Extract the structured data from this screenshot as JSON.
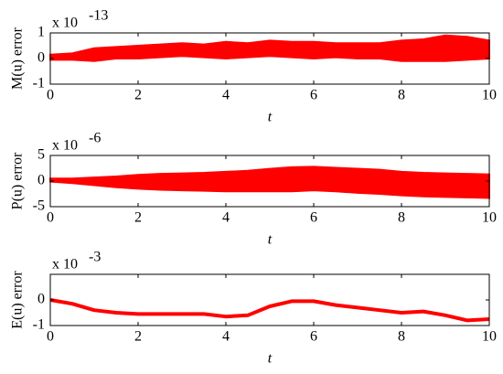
{
  "chart_data": [
    {
      "type": "band",
      "ylabel": "M(u) error",
      "xlabel": "t",
      "multiplier": "x 10",
      "exponent": "-13",
      "color": "#ff0000",
      "x": [
        0,
        0.5,
        1,
        1.5,
        2,
        2.5,
        3,
        3.5,
        4,
        4.5,
        5,
        5.5,
        6,
        6.5,
        7,
        7.5,
        8,
        8.5,
        9,
        9.5,
        10
      ],
      "upper": [
        0.15,
        0.2,
        0.4,
        0.45,
        0.5,
        0.55,
        0.6,
        0.55,
        0.65,
        0.6,
        0.7,
        0.65,
        0.65,
        0.6,
        0.6,
        0.6,
        0.7,
        0.75,
        0.9,
        0.85,
        0.7
      ],
      "lower": [
        -0.05,
        -0.05,
        -0.1,
        0,
        0,
        0.05,
        0.1,
        0.05,
        0,
        0.05,
        0.1,
        0.05,
        0,
        0.05,
        0,
        0,
        -0.1,
        -0.1,
        -0.1,
        -0.05,
        0
      ],
      "xlim": [
        0,
        10
      ],
      "xticks": [
        0,
        2,
        4,
        6,
        8,
        10
      ],
      "ylim": [
        -1,
        1
      ],
      "yticks": [
        -1,
        0,
        1
      ]
    },
    {
      "type": "band",
      "ylabel": "P(u) error",
      "xlabel": "t",
      "multiplier": "x 10",
      "exponent": "-6",
      "color": "#ff0000",
      "x": [
        0,
        0.5,
        1,
        1.5,
        2,
        2.5,
        3,
        3.5,
        4,
        4.5,
        5,
        5.5,
        6,
        6.5,
        7,
        7.5,
        8,
        8.5,
        9,
        9.5,
        10
      ],
      "upper": [
        0.5,
        0.5,
        0.7,
        0.9,
        1.2,
        1.4,
        1.5,
        1.6,
        1.8,
        2,
        2.4,
        2.7,
        2.8,
        2.6,
        2.4,
        2.2,
        1.8,
        1.6,
        1.5,
        1.4,
        1.3
      ],
      "lower": [
        -0.1,
        -0.4,
        -0.8,
        -1.2,
        -1.5,
        -1.7,
        -1.8,
        -1.9,
        -2,
        -2,
        -2,
        -2,
        -1.8,
        -2,
        -2.3,
        -2.5,
        -2.8,
        -3,
        -3.1,
        -3.2,
        -3.3
      ],
      "xlim": [
        0,
        10
      ],
      "xticks": [
        0,
        2,
        4,
        6,
        8,
        10
      ],
      "ylim": [
        -5,
        5
      ],
      "yticks": [
        -5,
        0,
        5
      ]
    },
    {
      "type": "line",
      "ylabel": "E(u) error",
      "xlabel": "t",
      "multiplier": "x 10",
      "exponent": "-3",
      "color": "#ff0000",
      "x": [
        0,
        0.5,
        1,
        1.5,
        2,
        2.5,
        3,
        3.5,
        4,
        4.5,
        5,
        5.5,
        6,
        6.5,
        7,
        7.5,
        8,
        8.5,
        9,
        9.5,
        10
      ],
      "values": [
        0,
        -0.15,
        -0.4,
        -0.5,
        -0.55,
        -0.55,
        -0.55,
        -0.55,
        -0.65,
        -0.6,
        -0.25,
        -0.05,
        -0.05,
        -0.2,
        -0.3,
        -0.4,
        -0.5,
        -0.45,
        -0.6,
        -0.8,
        -0.75
      ],
      "xlim": [
        0,
        10
      ],
      "xticks": [
        0,
        2,
        4,
        6,
        8,
        10
      ],
      "ylim": [
        -1,
        1
      ],
      "yticks": [
        -1,
        0
      ]
    }
  ]
}
